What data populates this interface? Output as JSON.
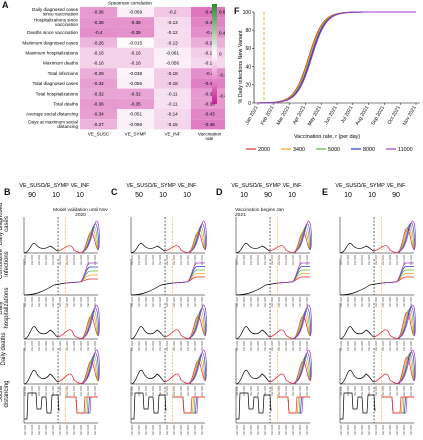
{
  "panels": {
    "A": "A",
    "B": "B",
    "C": "C",
    "D": "D",
    "E": "E",
    "F": "F"
  },
  "heatmap": {
    "title": "Spearman correlation",
    "row_labels": [
      "Daily diagnosed cases since vaccination",
      "Hospitalizations since vaccination",
      "Deaths since vaccination",
      "Maximum diagnosed cases",
      "Maximum hospitalizations",
      "Maximum deaths",
      "Total infections",
      "Total diagnosed cases",
      "Total hospitalizations",
      "Total deaths",
      "Average social distancing",
      "Days at maximum social distancing"
    ],
    "col_labels": [
      "VE_SUSC",
      "VE_SYMP",
      "VE_INF",
      "Vaccination rate"
    ],
    "values": [
      [
        -0.36,
        -0.059,
        -0.2,
        -0.49
      ],
      [
        -0.38,
        -0.38,
        -0.13,
        -0.44
      ],
      [
        -0.4,
        -0.39,
        -0.12,
        -0.4
      ],
      [
        -0.26,
        -0.015,
        -0.13,
        -0.29
      ],
      [
        -0.16,
        -0.16,
        -0.061,
        -0.18
      ],
      [
        -0.16,
        -0.16,
        -0.056,
        -0.14
      ],
      [
        -0.29,
        -0.038,
        -0.18,
        -0.4
      ],
      [
        -0.34,
        -0.055,
        -0.18,
        -0.45
      ],
      [
        -0.32,
        -0.32,
        -0.11,
        -0.36
      ],
      [
        -0.36,
        -0.35,
        -0.11,
        -0.36
      ],
      [
        -0.34,
        -0.051,
        -0.14,
        -0.43
      ],
      [
        -0.27,
        -0.056,
        -0.15,
        -0.46
      ]
    ],
    "colorbar_ticks": [
      "0.8",
      "0.4",
      "0",
      "-0.4",
      "-0.8"
    ]
  },
  "panelF": {
    "ylabel": "% Daily infections New Variant",
    "yticks": [
      "0",
      "20",
      "40",
      "60",
      "80",
      "100"
    ],
    "xticks": [
      "Jan 2021",
      "Feb 2021",
      "Mar 2021",
      "Apr 2021",
      "May 2021",
      "Jun 2021",
      "Jul 2021",
      "Aug 2021",
      "Sep 2021",
      "Oct 2021",
      "Nov 2021"
    ],
    "legend_title": "Vaccination rate, r (per day)",
    "series": [
      {
        "name": "2000",
        "color": "#e8283a"
      },
      {
        "name": "3400",
        "color": "#f0a41e"
      },
      {
        "name": "5000",
        "color": "#59b847"
      },
      {
        "name": "8000",
        "color": "#2438c8"
      },
      {
        "name": "11000",
        "color": "#a23fc4"
      }
    ]
  },
  "grid": {
    "row_labels": [
      "Daily diagnosed cases",
      "Cumulative infections",
      "Daily hospitalizations",
      "Daily deaths",
      "Social distancing"
    ],
    "columns": [
      {
        "panel": "B",
        "ve_values": [
          "90",
          "10",
          "10"
        ]
      },
      {
        "panel": "C",
        "ve_values": [
          "50",
          "10",
          "10"
        ]
      },
      {
        "panel": "D",
        "ve_values": [
          "10",
          "90",
          "10"
        ]
      },
      {
        "panel": "E",
        "ve_values": [
          "10",
          "10",
          "90"
        ]
      }
    ],
    "ve_labels": [
      "VE_SUSC",
      "VE_SYMP",
      "VE_INF"
    ],
    "annotations": {
      "model_validation": "Model validation until Nov 2020",
      "vaccination_begins": "Vaccination begins Jan 2021"
    },
    "yticks_cases": [
      "0",
      "500",
      "1000",
      "1500"
    ],
    "yticks_cum": [
      "0",
      "10000",
      "20000",
      "30000",
      "40000",
      "50000",
      "60000"
    ],
    "yticks_hosp": [
      "0",
      "20",
      "40",
      "60",
      "80",
      "100"
    ],
    "yticks_deaths": [
      "0",
      "5",
      "10",
      "15",
      "20",
      "25"
    ],
    "right_pct": [
      "90%",
      "70%",
      "50%",
      "30%",
      "10%"
    ]
  }
}
